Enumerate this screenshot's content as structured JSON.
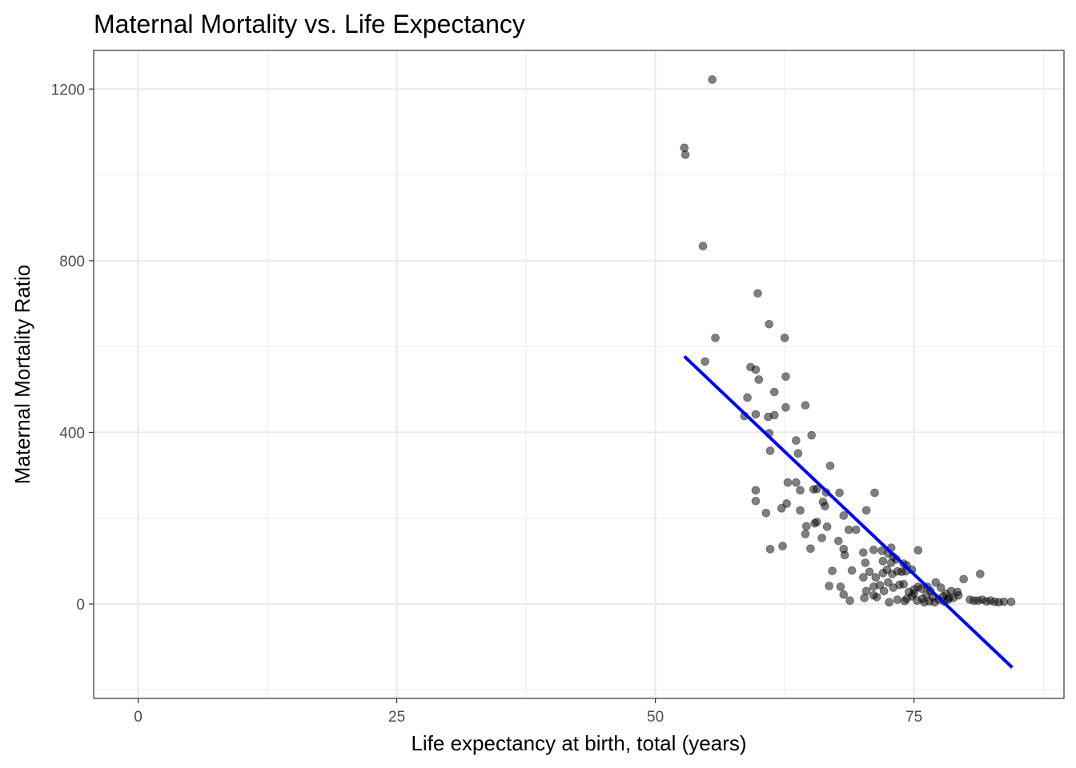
{
  "chart_data": {
    "type": "scatter",
    "title": "Maternal Mortality vs. Life Expectancy",
    "xlabel": "Life expectancy at birth, total (years)",
    "ylabel": "Maternal Mortality Ratio",
    "xlim": [
      -4.3,
      89.5
    ],
    "ylim": [
      -220,
      1290
    ],
    "x_ticks": [
      0,
      25,
      50,
      75
    ],
    "x_tick_labels": [
      "0",
      "25",
      "50",
      "75"
    ],
    "y_ticks": [
      0,
      400,
      800,
      1200
    ],
    "y_tick_labels": [
      "0",
      "400",
      "800",
      "1200"
    ],
    "grid": true,
    "theme": "black-and-white",
    "legend": "none",
    "colors": {
      "points": "#000000",
      "point_opacity": 0.5,
      "fit_line": "#0000ff",
      "grid": "#ebebeb",
      "panel_border": "#333333"
    },
    "fit_line": {
      "type": "linear",
      "x": [
        52.8,
        84.5
      ],
      "y": [
        577,
        -148
      ]
    },
    "points": [
      [
        55.5,
        1222
      ],
      [
        52.8,
        1063
      ],
      [
        52.9,
        1047
      ],
      [
        54.6,
        834
      ],
      [
        59.9,
        724
      ],
      [
        61.0,
        652
      ],
      [
        62.5,
        620
      ],
      [
        55.8,
        620
      ],
      [
        54.8,
        565
      ],
      [
        59.2,
        552
      ],
      [
        59.7,
        546
      ],
      [
        62.6,
        530
      ],
      [
        60.0,
        523
      ],
      [
        61.5,
        494
      ],
      [
        58.9,
        481
      ],
      [
        64.5,
        463
      ],
      [
        62.6,
        458
      ],
      [
        58.6,
        438
      ],
      [
        59.7,
        442
      ],
      [
        60.9,
        436
      ],
      [
        61.5,
        440
      ],
      [
        61.0,
        398
      ],
      [
        65.1,
        393
      ],
      [
        63.6,
        381
      ],
      [
        61.1,
        357
      ],
      [
        63.8,
        351
      ],
      [
        66.9,
        322
      ],
      [
        62.8,
        283
      ],
      [
        63.6,
        283
      ],
      [
        64.0,
        265
      ],
      [
        59.7,
        265
      ],
      [
        65.3,
        267
      ],
      [
        65.6,
        268
      ],
      [
        66.5,
        260
      ],
      [
        67.8,
        259
      ],
      [
        71.2,
        259
      ],
      [
        59.7,
        240
      ],
      [
        62.7,
        234
      ],
      [
        66.2,
        238
      ],
      [
        66.4,
        228
      ],
      [
        62.2,
        223
      ],
      [
        64.0,
        218
      ],
      [
        70.4,
        218
      ],
      [
        60.7,
        212
      ],
      [
        68.2,
        206
      ],
      [
        65.6,
        191
      ],
      [
        65.4,
        188
      ],
      [
        64.6,
        181
      ],
      [
        66.6,
        180
      ],
      [
        68.7,
        173
      ],
      [
        69.4,
        173
      ],
      [
        64.5,
        163
      ],
      [
        66.1,
        154
      ],
      [
        67.7,
        147
      ],
      [
        68.2,
        128
      ],
      [
        72.8,
        131
      ],
      [
        75.4,
        125
      ],
      [
        61.1,
        128
      ],
      [
        62.3,
        135
      ],
      [
        65.0,
        129
      ],
      [
        68.3,
        114
      ],
      [
        70.1,
        120
      ],
      [
        71.1,
        126
      ],
      [
        71.9,
        124
      ],
      [
        72.5,
        118
      ],
      [
        73.0,
        110
      ],
      [
        72.0,
        100
      ],
      [
        72.8,
        96
      ],
      [
        73.3,
        104
      ],
      [
        74.0,
        94
      ],
      [
        74.3,
        90
      ],
      [
        74.8,
        80
      ],
      [
        70.3,
        96
      ],
      [
        70.1,
        62
      ],
      [
        70.7,
        75
      ],
      [
        71.3,
        62
      ],
      [
        72.0,
        72
      ],
      [
        72.4,
        80
      ],
      [
        72.9,
        70
      ],
      [
        73.4,
        76
      ],
      [
        73.8,
        75
      ],
      [
        74.2,
        76
      ],
      [
        69.0,
        78
      ],
      [
        67.1,
        77
      ],
      [
        71.1,
        40
      ],
      [
        71.7,
        44
      ],
      [
        72.1,
        30
      ],
      [
        72.5,
        50
      ],
      [
        73.0,
        38
      ],
      [
        73.6,
        45
      ],
      [
        70.4,
        30
      ],
      [
        66.8,
        42
      ],
      [
        67.9,
        40
      ],
      [
        71.1,
        20
      ],
      [
        71.4,
        16
      ],
      [
        68.2,
        22
      ],
      [
        68.8,
        8
      ],
      [
        70.2,
        14
      ],
      [
        72.6,
        4
      ],
      [
        74.1,
        7
      ],
      [
        74.5,
        28
      ],
      [
        75.0,
        34
      ],
      [
        75.4,
        40
      ],
      [
        74.8,
        18
      ],
      [
        75.8,
        12
      ],
      [
        76.2,
        22
      ],
      [
        76.6,
        30
      ],
      [
        77.1,
        50
      ],
      [
        77.6,
        38
      ],
      [
        78.1,
        24
      ],
      [
        78.6,
        30
      ],
      [
        79.2,
        28
      ],
      [
        75.3,
        8
      ],
      [
        76.0,
        4
      ],
      [
        76.5,
        6
      ],
      [
        77.0,
        4
      ],
      [
        77.4,
        10
      ],
      [
        77.9,
        6
      ],
      [
        78.3,
        10
      ],
      [
        78.8,
        14
      ],
      [
        79.3,
        20
      ],
      [
        79.8,
        58
      ],
      [
        81.4,
        70
      ],
      [
        80.4,
        10
      ],
      [
        80.8,
        8
      ],
      [
        81.2,
        8
      ],
      [
        81.6,
        10
      ],
      [
        82.0,
        6
      ],
      [
        82.4,
        8
      ],
      [
        82.8,
        5
      ],
      [
        83.2,
        4
      ],
      [
        83.7,
        5
      ],
      [
        84.4,
        5
      ],
      [
        75.0,
        24
      ],
      [
        76.8,
        16
      ],
      [
        77.8,
        18
      ],
      [
        78.4,
        14
      ],
      [
        74.3,
        12
      ],
      [
        73.4,
        10
      ],
      [
        74.0,
        46
      ],
      [
        75.7,
        36
      ],
      [
        76.3,
        40
      ]
    ]
  }
}
